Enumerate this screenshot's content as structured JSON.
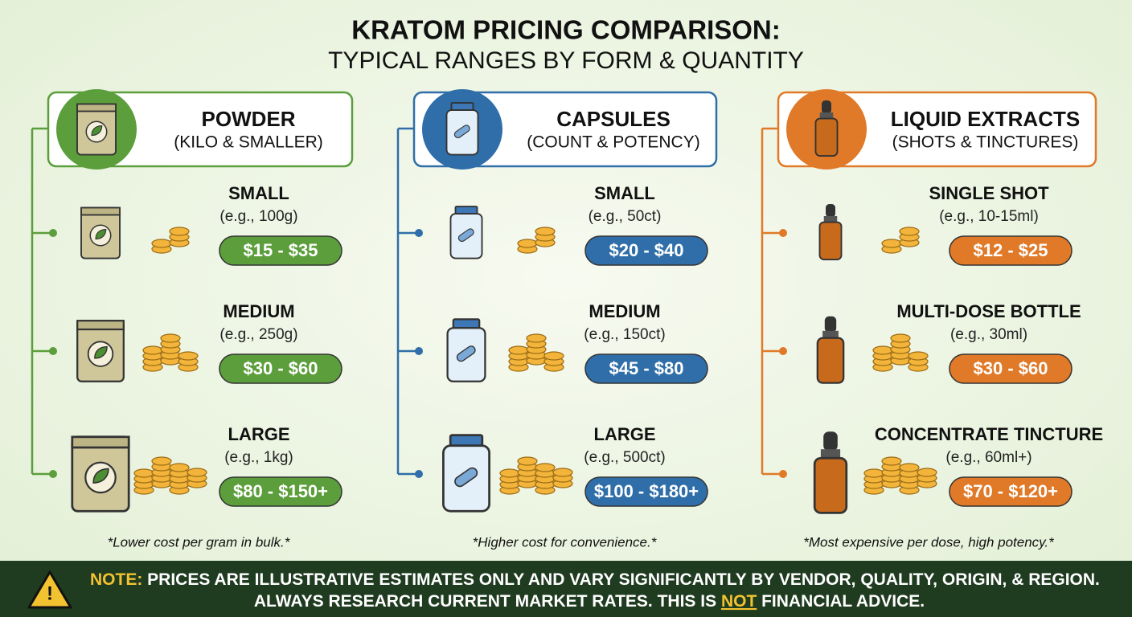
{
  "header": {
    "title": "KRATOM PRICING COMPARISON:",
    "subtitle": "TYPICAL RANGES BY FORM & QUANTITY"
  },
  "columns": [
    {
      "title": "POWDER",
      "subtitle": "(KILO & SMALLER)",
      "tiers": [
        {
          "size": "SMALL",
          "example": "(e.g., 100g)",
          "price": "$15 - $35"
        },
        {
          "size": "MEDIUM",
          "example": "(e.g., 250g)",
          "price": "$30 - $60"
        },
        {
          "size": "LARGE",
          "example": "(e.g., 1kg)",
          "price": "$80 - $150+"
        }
      ],
      "footnote": "*Lower cost per gram in bulk.*"
    },
    {
      "title": "CAPSULES",
      "subtitle": "(COUNT & POTENCY)",
      "tiers": [
        {
          "size": "SMALL",
          "example": "(e.g., 50ct)",
          "price": "$20 - $40"
        },
        {
          "size": "MEDIUM",
          "example": "(e.g., 150ct)",
          "price": "$45 - $80"
        },
        {
          "size": "LARGE",
          "example": "(e.g., 500ct)",
          "price": "$100 - $180+"
        }
      ],
      "footnote": "*Higher cost for convenience.*"
    },
    {
      "title": "LIQUID EXTRACTS",
      "subtitle": "(SHOTS & TINCTURES)",
      "tiers": [
        {
          "size": "SINGLE SHOT",
          "example": "(e.g., 10-15ml)",
          "price": "$12 - $25"
        },
        {
          "size": "MULTI-DOSE BOTTLE",
          "example": "(e.g., 30ml)",
          "price": "$30 - $60"
        },
        {
          "size": "CONCENTRATE TINCTURE",
          "example": "(e.g., 60ml+)",
          "price": "$70 - $120+"
        }
      ],
      "footnote": "*Most expensive per dose, high potency.*"
    }
  ],
  "note": {
    "label": "NOTE:",
    "line1": "PRICES ARE ILLUSTRATIVE ESTIMATES ONLY AND VARY SIGNIFICANTLY BY VENDOR, QUALITY, ORIGIN, & REGION.",
    "line2_start": "ALWAYS RESEARCH CURRENT MARKET RATES. THIS IS ",
    "line2_emphasis": "NOT",
    "line2_end": " FINANCIAL ADVICE."
  }
}
